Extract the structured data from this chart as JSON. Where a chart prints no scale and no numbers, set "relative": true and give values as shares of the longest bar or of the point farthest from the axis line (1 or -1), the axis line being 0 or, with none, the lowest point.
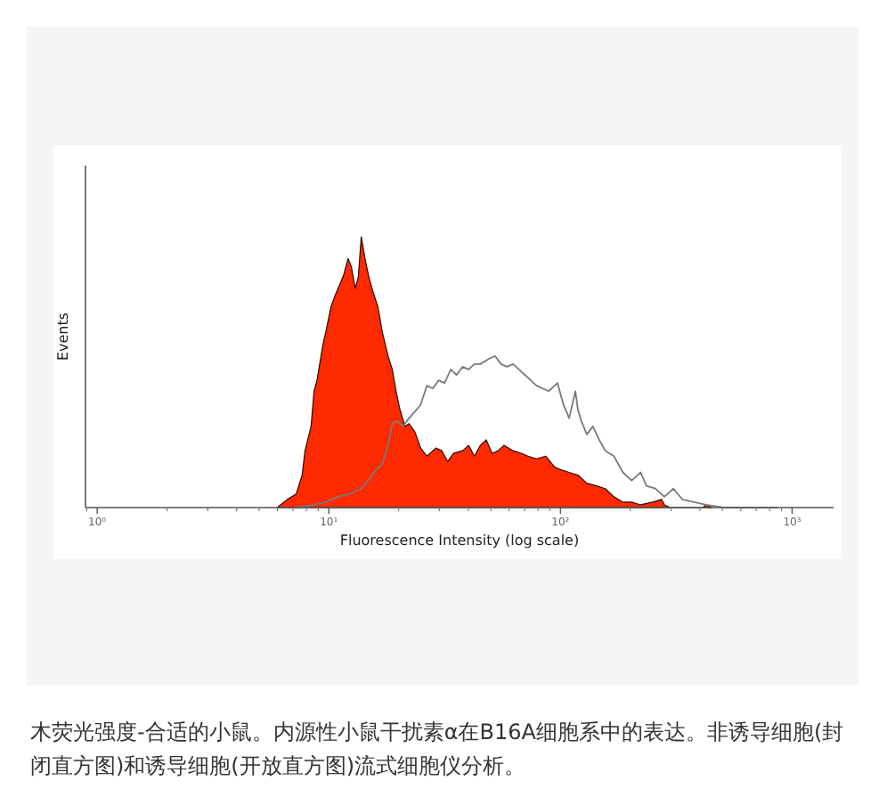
{
  "chart_data": {
    "type": "area",
    "relative": true,
    "log": "x",
    "xlabel": "Fluorescence Intensity (log scale)",
    "ylabel": "Events",
    "xlim": [
      0.89,
      1510
    ],
    "xticks": [
      {
        "value": 1,
        "label": "10⁰"
      },
      {
        "value": 10,
        "label": "10¹"
      },
      {
        "value": 100,
        "label": "10²"
      },
      {
        "value": 1000,
        "label": "10³"
      }
    ],
    "annotations": [
      "木荧光强度-合适的小鼠。内源性小鼠干扰素α在B16A细胞系中的表达。非诱导细胞(封闭直方图)和诱导细胞(开放直方图)流式细胞仪分析。"
    ],
    "series": [
      {
        "color": "#ff2a00",
        "x": [
          5.98,
          6.62,
          7.23,
          7.67,
          7.89,
          8.38,
          8.63,
          8.89,
          9.42,
          9.71,
          10.2,
          10.6,
          11.1,
          11.6,
          12.1,
          12.5,
          13.0,
          13.4,
          13.8,
          14.4,
          14.9,
          15.6,
          16.3,
          17.0,
          18.0,
          18.8,
          19.5,
          20.3,
          21.3,
          22.2,
          23.5,
          24.9,
          26.5,
          29.0,
          30.7,
          32.6,
          34.5,
          37.8,
          40.1,
          42.5,
          45.1,
          47.8,
          50.7,
          53.8,
          57.0,
          62.4,
          68.1,
          72.3,
          78.9,
          86.3,
          94.2,
          100,
          109,
          119,
          130,
          143,
          156,
          170,
          186,
          203,
          222,
          250,
          273,
          281,
          298,
          412,
          425,
          451
        ],
        "values": [
          0,
          0.03,
          0.05,
          0.12,
          0.21,
          0.3,
          0.43,
          0.47,
          0.6,
          0.65,
          0.74,
          0.78,
          0.82,
          0.86,
          0.92,
          0.89,
          0.81,
          0.85,
          1,
          0.91,
          0.85,
          0.79,
          0.74,
          0.65,
          0.56,
          0.51,
          0.43,
          0.36,
          0.3,
          0.31,
          0.28,
          0.22,
          0.19,
          0.22,
          0.21,
          0.17,
          0.2,
          0.21,
          0.23,
          0.19,
          0.23,
          0.25,
          0.2,
          0.21,
          0.23,
          0.21,
          0.2,
          0.19,
          0.18,
          0.19,
          0.15,
          0.14,
          0.13,
          0.12,
          0.09,
          0.08,
          0.07,
          0.04,
          0.02,
          0.02,
          0.01,
          0.02,
          0.03,
          0.01,
          0,
          0,
          0.01,
          0
        ]
      },
      {
        "type": "line",
        "color": "#7a7a7a",
        "x": [
          7.23,
          8.63,
          9.71,
          10.9,
          12.3,
          13.8,
          15.1,
          16.0,
          17.0,
          18.0,
          18.8,
          19.7,
          20.9,
          22.2,
          23.8,
          24.9,
          26.5,
          28.1,
          29.8,
          31.6,
          33.6,
          35.6,
          37.8,
          40.1,
          42.5,
          45.1,
          49.2,
          52.2,
          55.4,
          58.8,
          62.4,
          66.2,
          70.2,
          74.5,
          78.9,
          83.8,
          88.9,
          97.1,
          103,
          109,
          116,
          119,
          123,
          130,
          138,
          147,
          156,
          170,
          186,
          203,
          222,
          235,
          257,
          281,
          307,
          336,
          378,
          425,
          507,
          605,
          722,
          863
        ],
        "values": [
          0,
          0.01,
          0.02,
          0.04,
          0.05,
          0.07,
          0.11,
          0.14,
          0.16,
          0.23,
          0.31,
          0.32,
          0.3,
          0.33,
          0.36,
          0.38,
          0.45,
          0.44,
          0.47,
          0.46,
          0.51,
          0.49,
          0.52,
          0.51,
          0.53,
          0.53,
          0.55,
          0.56,
          0.53,
          0.52,
          0.53,
          0.51,
          0.49,
          0.47,
          0.45,
          0.44,
          0.43,
          0.46,
          0.38,
          0.33,
          0.43,
          0.36,
          0.32,
          0.27,
          0.3,
          0.25,
          0.21,
          0.19,
          0.13,
          0.1,
          0.13,
          0.08,
          0.07,
          0.04,
          0.07,
          0.03,
          0.02,
          0.01,
          0,
          0,
          0,
          0
        ]
      }
    ]
  }
}
